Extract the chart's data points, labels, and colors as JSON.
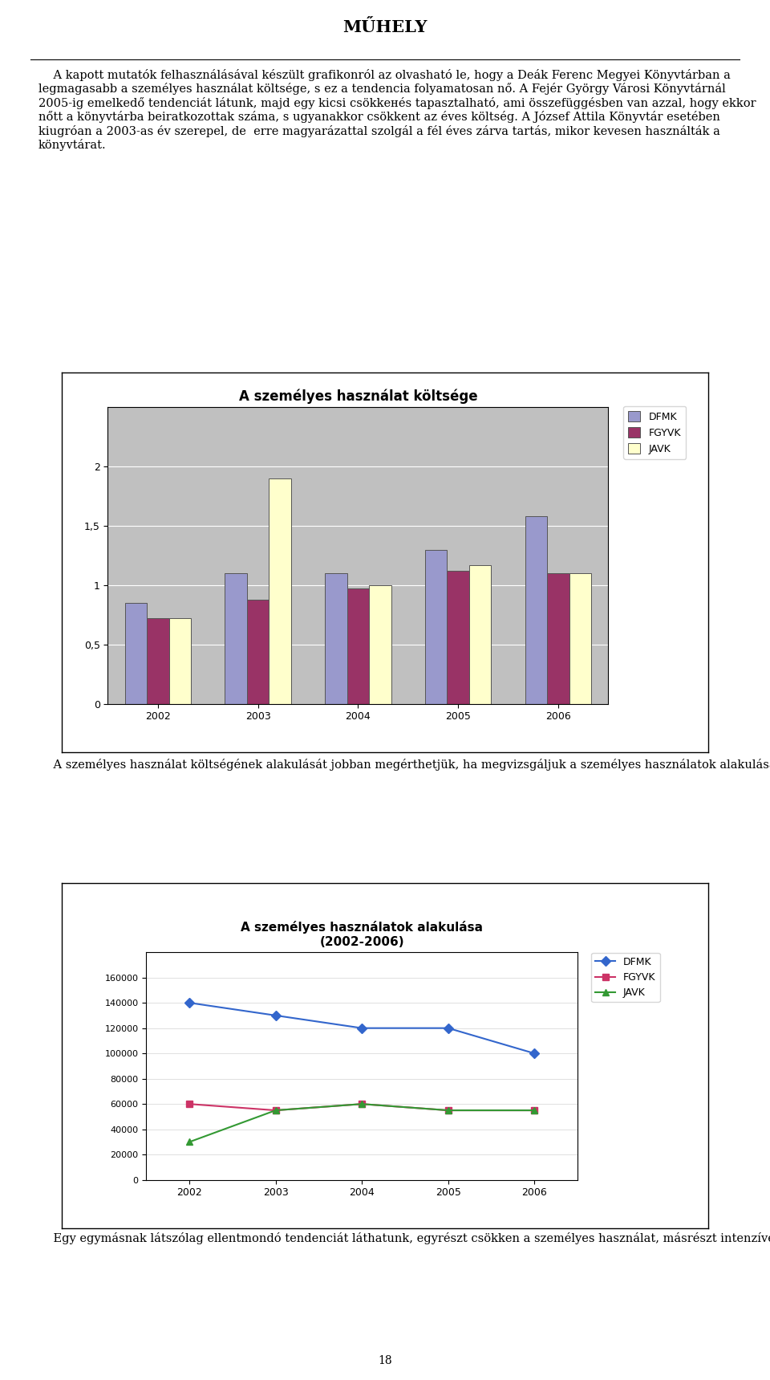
{
  "chart1": {
    "title": "A személyes használat költsége",
    "years": [
      2002,
      2003,
      2004,
      2005,
      2006
    ],
    "series": {
      "DFMK": [
        0.85,
        1.1,
        1.1,
        1.3,
        1.58
      ],
      "FGYVK": [
        0.72,
        0.88,
        0.97,
        1.12,
        1.1
      ],
      "JAVK": [
        0.72,
        1.9,
        1.0,
        1.17,
        1.1
      ]
    },
    "colors": {
      "DFMK": "#9999CC",
      "FGYVK": "#993366",
      "JAVK": "#FFFFCC"
    },
    "ylim": [
      0,
      2.5
    ],
    "yticks": [
      0,
      0.5,
      1.0,
      1.5,
      2.0
    ],
    "plot_background": "#C0C0C0"
  },
  "chart2": {
    "title1": "A személyes használatok alakulása",
    "title2": "(2002-2006)",
    "years": [
      2002,
      2003,
      2004,
      2005,
      2006
    ],
    "series": {
      "DFMK": [
        140000,
        130000,
        120000,
        120000,
        100000
      ],
      "FGYVK": [
        60000,
        55000,
        60000,
        55000,
        55000
      ],
      "JAVK": [
        30000,
        55000,
        60000,
        55000,
        55000
      ]
    },
    "colors": {
      "DFMK": "#3366CC",
      "FGYVK": "#CC3366",
      "JAVK": "#339933"
    },
    "markers": {
      "DFMK": "D",
      "FGYVK": "s",
      "JAVK": "^"
    },
    "ylim": [
      0,
      180000
    ],
    "yticks": [
      0,
      20000,
      40000,
      60000,
      80000,
      100000,
      120000,
      140000,
      160000
    ],
    "plot_background": "#FFFFFF"
  },
  "page_background": "#FFFFFF",
  "text_color": "#000000",
  "title_text": "MŰHELY",
  "page_number": "18"
}
